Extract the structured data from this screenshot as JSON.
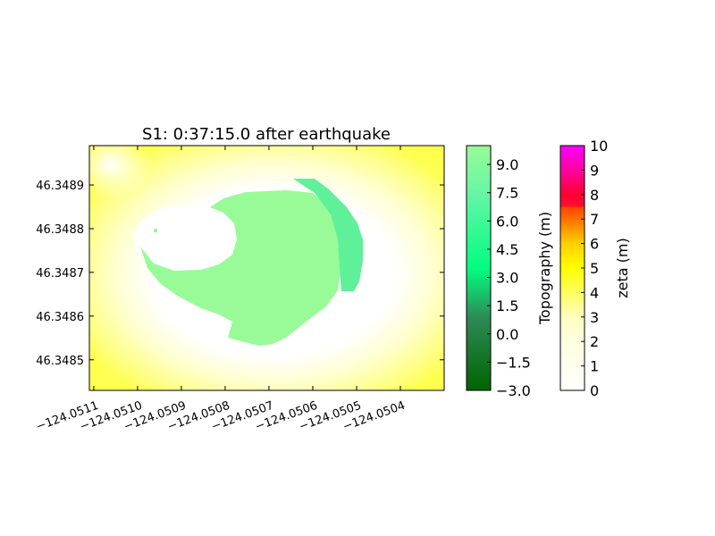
{
  "chart_data": {
    "type": "heatmap",
    "title": "S1: 0:37:15.0 after earthquake",
    "xlabel": "",
    "ylabel": "",
    "x_ticks": [
      "−124.0511",
      "−124.0510",
      "−124.0509",
      "−124.0508",
      "−124.0507",
      "−124.0506",
      "−124.0505",
      "−124.0504"
    ],
    "x_tick_values": [
      -124.0511,
      -124.051,
      -124.0509,
      -124.0508,
      -124.0507,
      -124.0506,
      -124.0505,
      -124.0504
    ],
    "y_ticks": [
      "46.3489",
      "46.3488",
      "46.3487",
      "46.3486",
      "46.3485"
    ],
    "y_tick_values": [
      46.3489,
      46.3488,
      46.3487,
      46.3486,
      46.3485
    ],
    "xlim": [
      -124.05111,
      -124.0503
    ],
    "ylim": [
      46.34843,
      46.34899
    ],
    "colorbars": [
      {
        "label": "Topography (m)",
        "ticks": [
          "9.0",
          "7.5",
          "6.0",
          "4.5",
          "3.0",
          "1.5",
          "0.0",
          "−1.5",
          "−3.0"
        ],
        "tick_values": [
          9.0,
          7.5,
          6.0,
          4.5,
          3.0,
          1.5,
          0.0,
          -1.5,
          -3.0
        ],
        "range": [
          -3.0,
          10.0
        ],
        "colors": [
          "#006400",
          "#2e8b57",
          "#00ff80",
          "#98fb98"
        ]
      },
      {
        "label": "zeta (m)",
        "ticks": [
          "10",
          "9",
          "8",
          "7",
          "6",
          "5",
          "4",
          "3",
          "2",
          "1",
          "0"
        ],
        "tick_values": [
          10,
          9,
          8,
          7,
          6,
          5,
          4,
          3,
          2,
          1,
          0
        ],
        "range": [
          0,
          10
        ],
        "colors": [
          "#ffffff",
          "#ffffe0",
          "#ffff00",
          "#ff8c00",
          "#ff4000",
          "#ff0000",
          "#ff00ff"
        ]
      }
    ],
    "map_colors": {
      "dry_land": "#98fb98",
      "shallow_land_edge": "#5ff09a",
      "water_low": "#ffffff",
      "water_mid": "#ffffaa",
      "water_high": "#ffff5a"
    }
  }
}
